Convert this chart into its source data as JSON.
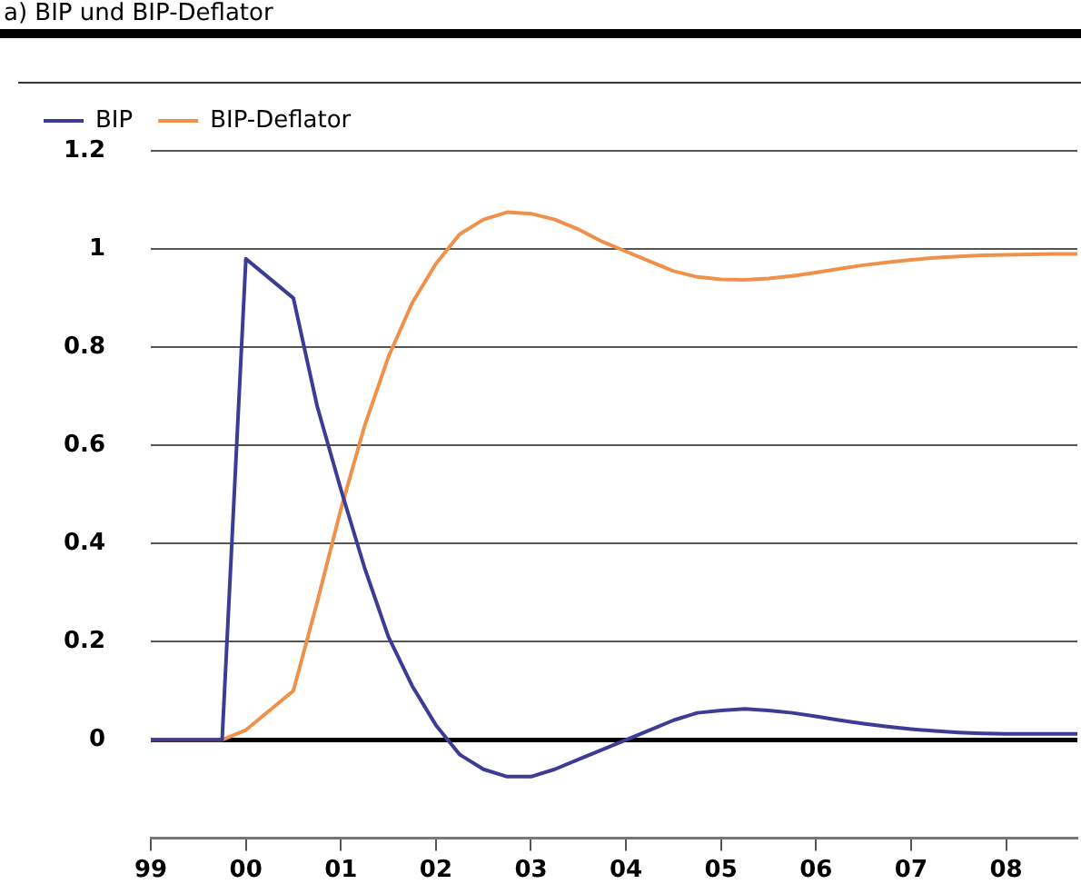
{
  "chart_data": {
    "type": "line",
    "title": "a) BIP und BIP-Deflator",
    "x": [
      1999,
      1999.75,
      2000,
      2000.5,
      2000.75,
      2001,
      2001.25,
      2001.5,
      2001.75,
      2002,
      2002.25,
      2002.5,
      2002.75,
      2003,
      2003.25,
      2003.5,
      2003.75,
      2004,
      2004.25,
      2004.5,
      2004.75,
      2005,
      2005.25,
      2005.5,
      2005.75,
      2006,
      2006.25,
      2006.5,
      2006.75,
      2007,
      2007.25,
      2007.5,
      2007.75,
      2008,
      2008.25,
      2008.5,
      2008.75
    ],
    "series": [
      {
        "name": "BIP",
        "color": "#3c3c96",
        "values": [
          0,
          0,
          0.98,
          0.9,
          0.68,
          0.51,
          0.35,
          0.21,
          0.11,
          0.03,
          -0.03,
          -0.06,
          -0.075,
          -0.075,
          -0.06,
          -0.04,
          -0.02,
          0,
          0.02,
          0.04,
          0.055,
          0.06,
          0.063,
          0.06,
          0.055,
          0.048,
          0.04,
          0.033,
          0.027,
          0.022,
          0.018,
          0.015,
          0.013,
          0.012,
          0.012,
          0.012,
          0.012
        ]
      },
      {
        "name": "BIP-Deflator",
        "color": "#f0914b",
        "values": [
          0,
          0,
          0.02,
          0.1,
          0.28,
          0.47,
          0.64,
          0.78,
          0.89,
          0.97,
          1.03,
          1.06,
          1.075,
          1.072,
          1.06,
          1.04,
          1.015,
          0.995,
          0.975,
          0.955,
          0.943,
          0.938,
          0.937,
          0.94,
          0.945,
          0.952,
          0.96,
          0.967,
          0.973,
          0.978,
          0.982,
          0.985,
          0.987,
          0.988,
          0.989,
          0.99,
          0.99
        ]
      }
    ],
    "xlim": [
      1999,
      2008.75
    ],
    "xticks": [
      {
        "value": 1999,
        "label": "99"
      },
      {
        "value": 2000,
        "label": "00"
      },
      {
        "value": 2001,
        "label": "01"
      },
      {
        "value": 2002,
        "label": "02"
      },
      {
        "value": 2003,
        "label": "03"
      },
      {
        "value": 2004,
        "label": "04"
      },
      {
        "value": 2005,
        "label": "05"
      },
      {
        "value": 2006,
        "label": "06"
      },
      {
        "value": 2007,
        "label": "07"
      },
      {
        "value": 2008,
        "label": "08"
      }
    ],
    "ylim": [
      -0.2,
      1.2
    ],
    "yticks": [
      0,
      0.2,
      0.4,
      0.6,
      0.8,
      1,
      1.2
    ],
    "grid": "y",
    "legend": "top",
    "marker": "none",
    "line_style": "solid"
  }
}
